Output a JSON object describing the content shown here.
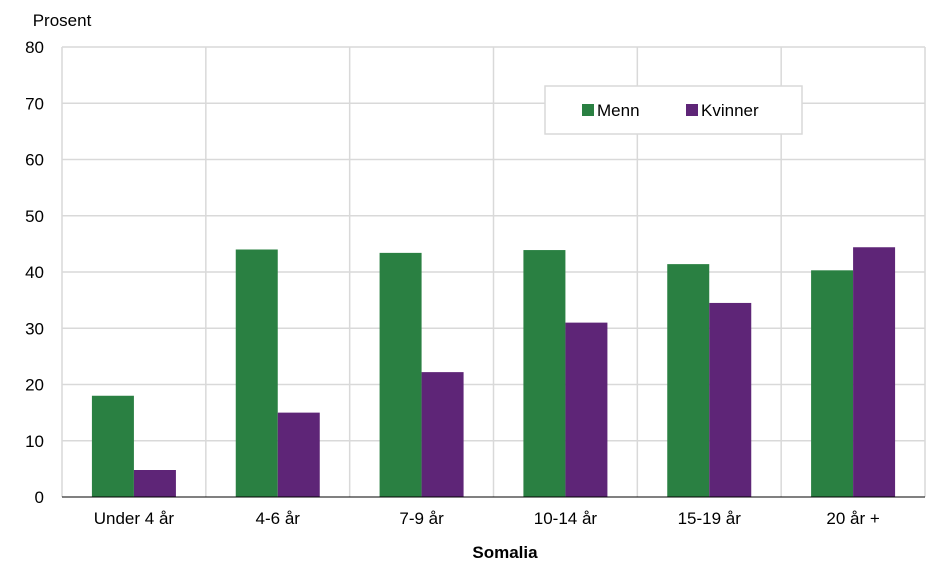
{
  "chart_data": {
    "type": "bar",
    "ylabel": "Prosent",
    "xlabel": "Somalia",
    "ylim": [
      0,
      80
    ],
    "yticks": [
      0,
      10,
      20,
      30,
      40,
      50,
      60,
      70,
      80
    ],
    "grid": true,
    "legend_position": "top-right",
    "categories": [
      "Under 4 år",
      "4-6 år",
      "7-9 år",
      "10-14 år",
      "15-19 år",
      "20 år +"
    ],
    "series": [
      {
        "name": "Menn",
        "color": "#2a8042",
        "values": [
          18,
          44,
          43.4,
          43.9,
          41.4,
          40.3
        ]
      },
      {
        "name": "Kvinner",
        "color": "#5e2577",
        "values": [
          4.8,
          15,
          22.2,
          31,
          34.5,
          44.4
        ]
      }
    ]
  }
}
